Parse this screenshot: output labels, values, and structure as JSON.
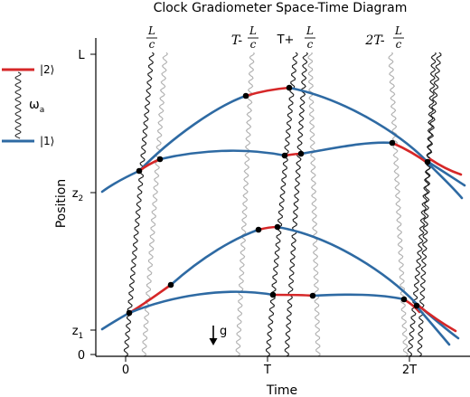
{
  "title": "Clock Gradiometer Space-Time Diagram",
  "axes": {
    "xlabel": "Time",
    "ylabel": "Position",
    "x_ticks": [
      "0",
      "T",
      "2T"
    ],
    "y_ticks": [
      "0",
      "z",
      "z",
      "L"
    ],
    "y_tick_subscripts": [
      "1",
      "2"
    ]
  },
  "pulse_labels": {
    "frac_num": "L",
    "frac_den": "c",
    "t_minus_prefix": "T-",
    "t_plus_prefix": "T+",
    "two_t_minus_prefix": "2T-"
  },
  "level_diagram": {
    "upper_state": "|2⟩",
    "lower_state": "|1⟩",
    "transition_symbol": "ω",
    "transition_subscript": "a"
  },
  "gravity_label": "g",
  "colors": {
    "ground_state": "#2e6aa3",
    "excited_state": "#d62728",
    "pulse_dark": "#1a1a1a",
    "pulse_light": "#b0b0b0",
    "axis": "#000000"
  },
  "chart_data": {
    "type": "line",
    "x": [
      0,
      1,
      2
    ],
    "x_tick_labels": [
      "0",
      "T",
      "2T"
    ],
    "series": [
      {
        "state": "|1⟩",
        "color": "#2e6aa3"
      },
      {
        "state": "|2⟩",
        "color": "#d62728"
      }
    ]
  }
}
